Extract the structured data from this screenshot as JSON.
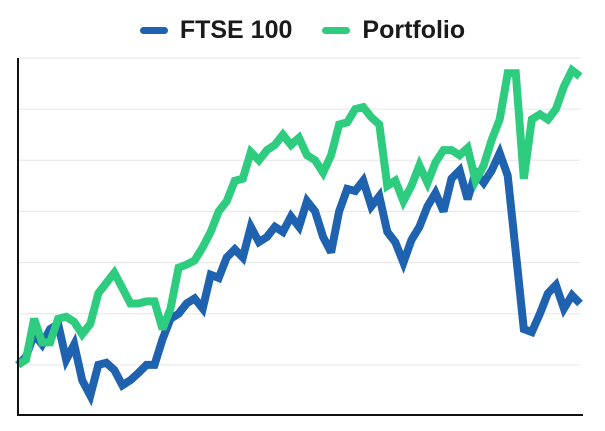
{
  "chart_data": {
    "type": "line",
    "title": "",
    "xlabel": "",
    "ylabel": "",
    "grid": true,
    "legend_placement": "top-center",
    "ylim": [
      0,
      350
    ],
    "series": [
      {
        "name": "FTSE 100",
        "color": "#1f63b0",
        "values": [
          50,
          58,
          80,
          70,
          85,
          90,
          55,
          70,
          35,
          20,
          50,
          52,
          45,
          30,
          35,
          42,
          50,
          50,
          75,
          95,
          100,
          110,
          115,
          105,
          138,
          135,
          155,
          163,
          155,
          185,
          170,
          175,
          185,
          180,
          195,
          185,
          210,
          200,
          175,
          160,
          200,
          222,
          220,
          230,
          205,
          215,
          180,
          170,
          150,
          172,
          185,
          205,
          218,
          200,
          232,
          240,
          212,
          238,
          228,
          240,
          257,
          235,
          160,
          85,
          82,
          100,
          120,
          128,
          105,
          118,
          110
        ]
      },
      {
        "name": "Portfolio",
        "color": "#2ecc7f",
        "values": [
          50,
          55,
          95,
          72,
          72,
          95,
          97,
          92,
          80,
          90,
          120,
          130,
          140,
          125,
          110,
          110,
          112,
          112,
          85,
          105,
          145,
          148,
          152,
          165,
          180,
          200,
          210,
          230,
          232,
          258,
          250,
          260,
          265,
          275,
          265,
          272,
          255,
          250,
          238,
          255,
          285,
          287,
          300,
          302,
          292,
          285,
          225,
          230,
          210,
          225,
          245,
          228,
          248,
          260,
          260,
          255,
          262,
          230,
          245,
          270,
          290,
          335,
          335,
          232,
          290,
          295,
          290,
          300,
          322,
          338,
          332
        ]
      }
    ]
  }
}
